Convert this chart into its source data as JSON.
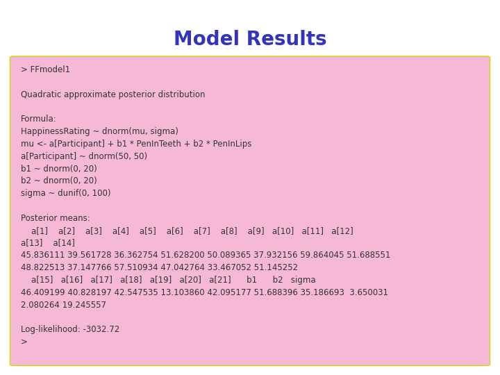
{
  "title": "Model Results",
  "title_color": "#3333bb",
  "title_fontsize": 20,
  "background_color": "#f5b8d5",
  "outer_bg_color": "#ffffff",
  "border_color": "#d4d400",
  "content_lines": [
    "> FFmodel1",
    "",
    "Quadratic approximate posterior distribution",
    "",
    "Formula:",
    "HappinessRating ~ dnorm(mu, sigma)",
    "mu <- a[Participant] + b1 * PenInTeeth + b2 * PenInLips",
    "a[Participant] ~ dnorm(50, 50)",
    "b1 ~ dnorm(0, 20)",
    "b2 ~ dnorm(0, 20)",
    "sigma ~ dunif(0, 100)",
    "",
    "Posterior means:",
    "    a[1]    a[2]    a[3]    a[4]    a[5]    a[6]    a[7]    a[8]    a[9]   a[10]   a[11]   a[12]",
    "a[13]    a[14]",
    "45.836111 39.561728 36.362754 51.628200 50.089365 37.932156 59.864045 51.688551",
    "48.822513 37.147766 57.510934 47.042764 33.467052 51.145252",
    "    a[15]   a[16]   a[17]   a[18]   a[19]   a[20]   a[21]      b1      b2   sigma",
    "46.409199 40.828197 42.547535 13.103860 42.095177 51.688396 35.186693  3.650031",
    "2.080264 19.245557",
    "",
    "Log-likelihood: -3032.72",
    ">"
  ],
  "text_color": "#333333",
  "text_fontsize": 8.5,
  "font_family": "DejaVu Sans"
}
